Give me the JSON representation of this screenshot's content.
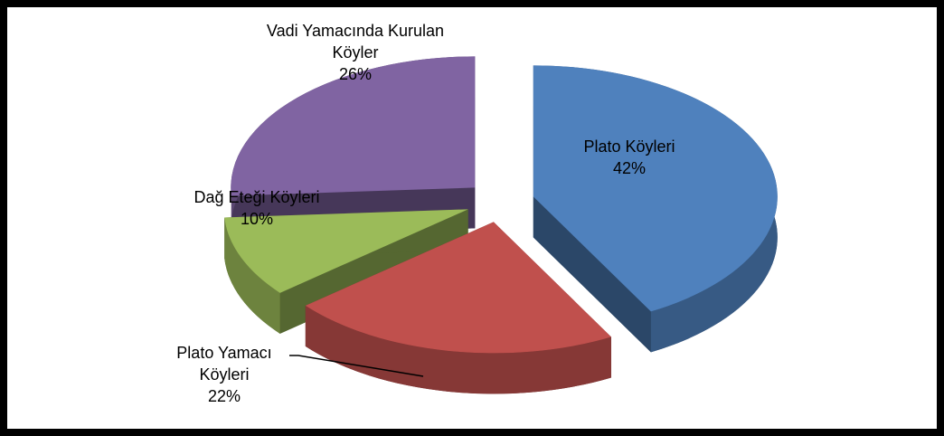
{
  "chart_data": {
    "type": "pie",
    "categories": [
      "Plato Köyleri",
      "Plato Yamacı Köyleri",
      "Dağ Eteği Köyleri",
      "Vadi Yamacında Kurulan Köyler"
    ],
    "values": [
      42,
      22,
      10,
      26
    ],
    "value_labels": [
      "42%",
      "22%",
      "10%",
      "26%"
    ],
    "colors": [
      "#4f81bd",
      "#c0504d",
      "#9bbb59",
      "#8064a2"
    ]
  }
}
